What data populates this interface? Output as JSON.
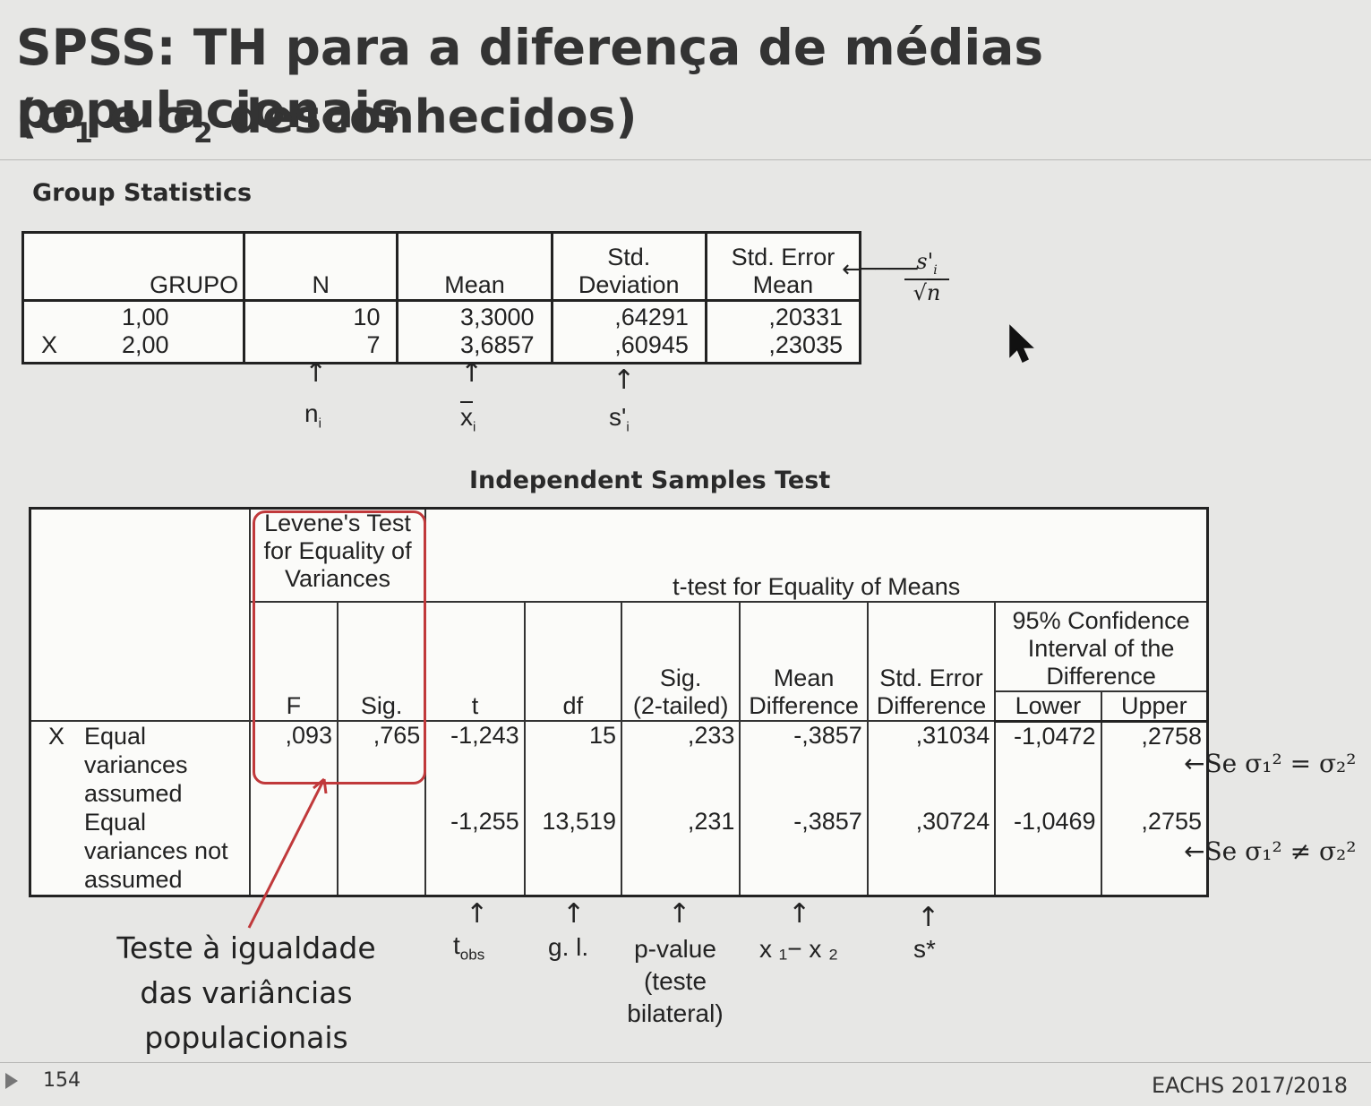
{
  "header": {
    "title": "SPSS: TH para a diferença de médias populacionais",
    "subtitle_open": "(σ",
    "sub1": "1",
    "subtitle_mid": " e σ",
    "sub2": "2",
    "subtitle_close": " desconhecidos)"
  },
  "group_statistics": {
    "title": "Group Statistics",
    "headers": {
      "grupo": "GRUPO",
      "n": "N",
      "mean": "Mean",
      "std_dev_1": "Std.",
      "std_dev_2": "Deviation",
      "std_err_1": "Std. Error",
      "std_err_2": "Mean"
    },
    "var_label": "X",
    "rows": [
      {
        "grupo": "1,00",
        "n": "10",
        "mean": "3,3000",
        "sd": ",64291",
        "se": ",20331"
      },
      {
        "grupo": "2,00",
        "n": "7",
        "mean": "3,6857",
        "sd": ",60945",
        "se": ",23035"
      }
    ],
    "annotations": {
      "formula_num": "s'",
      "formula_num_sub": "i",
      "formula_den": "n",
      "n_label": "n",
      "n_sub": "i",
      "xbar_label": "x",
      "xbar_sub": "i",
      "s_label": "s'",
      "s_sub": "i"
    }
  },
  "independent_samples_test": {
    "title": "Independent Samples Test",
    "levene_header_1": "Levene's Test",
    "levene_header_2": "for Equality of",
    "levene_header_3": "Variances",
    "ttest_header": "t-test for Equality of Means",
    "ci_header_1": "95% Confidence",
    "ci_header_2": "Interval of the",
    "ci_header_3": "Difference",
    "columns": {
      "f": "F",
      "sig": "Sig.",
      "t": "t",
      "df": "df",
      "sig2_1": "Sig.",
      "sig2_2": "(2-tailed)",
      "md_1": "Mean",
      "md_2": "Difference",
      "sed_1": "Std. Error",
      "sed_2": "Difference",
      "lower": "Lower",
      "upper": "Upper"
    },
    "var_label": "X",
    "rows": [
      {
        "label_1": "Equal",
        "label_2": "variances",
        "label_3": "assumed",
        "f": ",093",
        "sig": ",765",
        "t": "-1,243",
        "df": "15",
        "sig2": ",233",
        "md": "-,3857",
        "sed": ",31034",
        "lower": "-1,0472",
        "upper": ",2758"
      },
      {
        "label_1": "Equal",
        "label_2": "variances not",
        "label_3": "assumed",
        "f": "",
        "sig": "",
        "t": "-1,255",
        "df": "13,519",
        "sig2": ",231",
        "md": "-,3857",
        "sed": ",30724",
        "lower": "-1,0469",
        "upper": ",2755"
      }
    ],
    "side_notes": {
      "equal": "Se σ₁² = σ₂²",
      "not_equal": "Se σ₁² ≠ σ₂²"
    },
    "bottom_labels": {
      "tobs": "t",
      "tobs_sub": "obs",
      "gl": "g. l.",
      "pvalue_1": "p-value",
      "pvalue_2": "(teste",
      "pvalue_3": "bilateral)",
      "diff": "x ₁− x ₂",
      "sstar": "s*"
    },
    "levene_note_1": "Teste à igualdade",
    "levene_note_2": "das variâncias",
    "levene_note_3": "populacionais"
  },
  "footer": {
    "page_number": "154",
    "course": "EACHS 2017/2018"
  },
  "colors": {
    "background": "#e7e7e5",
    "highlight_red": "#c0393b"
  }
}
